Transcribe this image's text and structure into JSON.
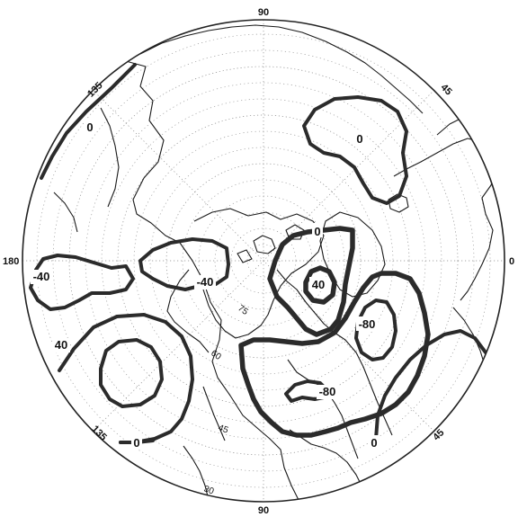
{
  "map": {
    "longitude_labels": {
      "top": "90",
      "bottom": "90",
      "left": "180",
      "right": "0",
      "upper_left": "135",
      "upper_right": "45",
      "lower_left": "135",
      "lower_right": "45"
    },
    "latitude_labels": [
      "75",
      "60",
      "45",
      "30"
    ],
    "contour_labels": [
      {
        "id": "c1",
        "text": "0"
      },
      {
        "id": "c2",
        "text": "0"
      },
      {
        "id": "c3",
        "text": "0"
      },
      {
        "id": "c4",
        "text": "-40"
      },
      {
        "id": "c5",
        "text": "-40"
      },
      {
        "id": "c6",
        "text": "40"
      },
      {
        "id": "c7",
        "text": "40"
      },
      {
        "id": "c8",
        "text": "-80"
      },
      {
        "id": "c9",
        "text": "-80"
      },
      {
        "id": "c10",
        "text": "0"
      },
      {
        "id": "c11",
        "text": "0"
      }
    ]
  }
}
